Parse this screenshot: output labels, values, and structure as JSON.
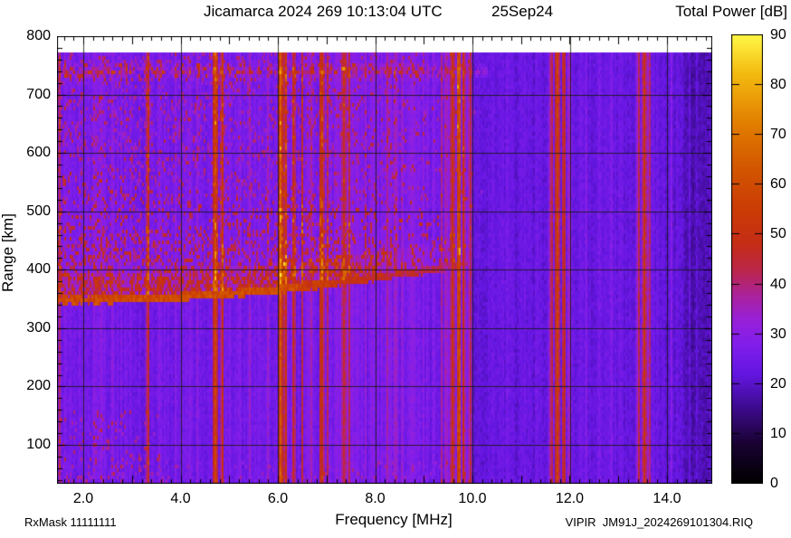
{
  "titles": {
    "main": "Jicamarca 2024 269 10:13:04 UTC",
    "date": "25Sep24",
    "colorbar": "Total Power [dB]",
    "x_axis": "Frequency [MHz]",
    "y_axis": "Range [km]"
  },
  "annotations": {
    "rx_mask": "RxMask 11111111",
    "file_id": "VIPIR  JM91J_2024269101304.RIQ"
  },
  "chart_data": {
    "type": "heatmap",
    "title": "Jicamarca 2024 269 10:13:04 UTC",
    "subtitle": "25Sep24",
    "xlabel": "Frequency [MHz]",
    "ylabel": "Range [km]",
    "colorbar_label": "Total Power [dB]",
    "x_range_mhz": [
      1.46,
      14.93
    ],
    "y_range_km": [
      33,
      800
    ],
    "x_ticks": [
      2.0,
      4.0,
      6.0,
      8.0,
      10.0,
      12.0,
      14.0
    ],
    "x_tick_labels": [
      "2.0",
      "4.0",
      "6.0",
      "8.0",
      "10.0",
      "12.0",
      "14.0"
    ],
    "x_minor_step_mhz": 0.2,
    "y_ticks": [
      100,
      200,
      300,
      400,
      500,
      600,
      700,
      800
    ],
    "y_minor_step_km": 20,
    "grid": true,
    "grid_x_mhz": [
      2,
      4,
      6,
      8,
      10,
      12,
      14
    ],
    "grid_y_km": [
      100,
      200,
      300,
      400,
      500,
      600,
      700
    ],
    "data_top_km": 772,
    "data_bottom_km": 33,
    "colorbar_range_db": [
      0,
      90
    ],
    "colorbar_ticks": [
      0,
      10,
      20,
      30,
      40,
      50,
      60,
      70,
      80,
      90
    ],
    "colormap_stops_db_rgb": [
      [
        0,
        0,
        0,
        0
      ],
      [
        8,
        25,
        2,
        50
      ],
      [
        15,
        60,
        10,
        140
      ],
      [
        22,
        100,
        22,
        225
      ],
      [
        28,
        130,
        30,
        235
      ],
      [
        33,
        152,
        32,
        215
      ],
      [
        38,
        172,
        34,
        150
      ],
      [
        43,
        188,
        38,
        70
      ],
      [
        48,
        197,
        45,
        22
      ],
      [
        55,
        203,
        60,
        5
      ],
      [
        63,
        210,
        85,
        0
      ],
      [
        72,
        225,
        125,
        0
      ],
      [
        82,
        243,
        185,
        15
      ],
      [
        90,
        255,
        248,
        70
      ]
    ],
    "noise_floor_db": 24,
    "features": {
      "f_trace": {
        "comment_visible": "bottomside F-layer echo trace",
        "base_km": 348,
        "quad_coeff": 0.9,
        "f0_mhz": 1.5,
        "sample_points_mhz_km": [
          [
            1.5,
            348
          ],
          [
            2,
            348
          ],
          [
            3,
            350
          ],
          [
            4,
            354
          ],
          [
            5,
            359
          ],
          [
            6,
            366
          ],
          [
            7,
            375
          ],
          [
            8,
            386
          ],
          [
            9,
            399
          ],
          [
            9.9,
            412
          ]
        ],
        "visible_to_mhz": 9.9,
        "core_db": 56
      },
      "spread_f": {
        "extent_mhz": [
          1.46,
          10.3
        ],
        "top_km_at_left": 570,
        "sparse_top_km": 775,
        "typical_db": 40,
        "fade_start_mhz": 7.5
      },
      "branch_trace": {
        "from_mhz_km": [
          6.02,
          395
        ],
        "to_mhz_km": [
          6.7,
          505
        ]
      },
      "high_band": {
        "center_km": 740,
        "half_width_km": 15,
        "extent_mhz": [
          1.46,
          10.3
        ],
        "boost_db": 9
      },
      "quiet_regions_mhz": [
        [
          10.05,
          11.55
        ],
        [
          12.05,
          13.35
        ]
      ],
      "dark_right_edge_from_mhz": 14.35
    },
    "rfi_stripes": [
      {
        "f": 1.52,
        "w": 1.5,
        "db": 14
      },
      {
        "f": 2.2,
        "w": 1.5,
        "db": 4
      },
      {
        "f": 2.38,
        "w": 1,
        "db": 4
      },
      {
        "f": 2.6,
        "w": 1,
        "db": 3
      },
      {
        "f": 2.78,
        "w": 1.5,
        "db": 5
      },
      {
        "f": 2.95,
        "w": 1,
        "db": 5
      },
      {
        "f": 3.33,
        "w": 1.5,
        "db": 20
      },
      {
        "f": 3.55,
        "w": 1,
        "db": 5
      },
      {
        "f": 3.9,
        "w": 1,
        "db": 4
      },
      {
        "f": 4.18,
        "w": 1,
        "db": 5
      },
      {
        "f": 4.33,
        "w": 1,
        "db": 6
      },
      {
        "f": 4.72,
        "w": 2.5,
        "db": 30
      },
      {
        "f": 4.85,
        "w": 2,
        "db": 24
      },
      {
        "f": 5.0,
        "w": 1,
        "db": 6
      },
      {
        "f": 5.22,
        "w": 1.5,
        "db": 7
      },
      {
        "f": 5.43,
        "w": 1,
        "db": 7
      },
      {
        "f": 5.62,
        "w": 1,
        "db": 5
      },
      {
        "f": 5.8,
        "w": 1,
        "db": 6
      },
      {
        "f": 6.06,
        "w": 3.5,
        "db": 32
      },
      {
        "f": 6.16,
        "w": 2,
        "db": 24
      },
      {
        "f": 6.33,
        "w": 1.5,
        "db": 18
      },
      {
        "f": 6.51,
        "w": 1.5,
        "db": 16
      },
      {
        "f": 6.68,
        "w": 1,
        "db": 7
      },
      {
        "f": 6.9,
        "w": 3,
        "db": 22
      },
      {
        "f": 7.03,
        "w": 1.5,
        "db": 12
      },
      {
        "f": 7.2,
        "w": 1,
        "db": 6
      },
      {
        "f": 7.36,
        "w": 2.5,
        "db": 20
      },
      {
        "f": 7.46,
        "w": 1.5,
        "db": 14
      },
      {
        "f": 7.63,
        "w": 1,
        "db": 6
      },
      {
        "f": 7.8,
        "w": 1,
        "db": 5
      },
      {
        "f": 8.05,
        "w": 1,
        "db": 5
      },
      {
        "f": 8.26,
        "w": 1.8,
        "db": 8
      },
      {
        "f": 8.41,
        "w": 1.5,
        "db": 8
      },
      {
        "f": 8.56,
        "w": 1.5,
        "db": 7
      },
      {
        "f": 8.76,
        "w": 1,
        "db": 5
      },
      {
        "f": 9.0,
        "w": 1.5,
        "db": 6
      },
      {
        "f": 9.2,
        "w": 1,
        "db": 6
      },
      {
        "f": 9.36,
        "w": 1.2,
        "db": 9
      },
      {
        "f": 9.46,
        "w": 1.5,
        "db": 13
      },
      {
        "f": 9.6,
        "w": 2.5,
        "db": 22
      },
      {
        "f": 9.72,
        "w": 2.5,
        "db": 34
      },
      {
        "f": 9.83,
        "w": 2,
        "db": 20
      },
      {
        "f": 9.95,
        "w": 1.5,
        "db": 16
      },
      {
        "f": 10.4,
        "w": 1,
        "db": 3
      },
      {
        "f": 10.7,
        "w": 1,
        "db": 3
      },
      {
        "f": 10.95,
        "w": 1,
        "db": 4
      },
      {
        "f": 11.15,
        "w": 1,
        "db": 3
      },
      {
        "f": 11.35,
        "w": 1,
        "db": 4
      },
      {
        "f": 11.62,
        "w": 2,
        "db": 18
      },
      {
        "f": 11.74,
        "w": 2.5,
        "db": 30
      },
      {
        "f": 11.88,
        "w": 1.5,
        "db": 34
      },
      {
        "f": 11.99,
        "w": 1.8,
        "db": 15
      },
      {
        "f": 12.35,
        "w": 1,
        "db": 4
      },
      {
        "f": 12.6,
        "w": 1,
        "db": 4
      },
      {
        "f": 12.85,
        "w": 1.2,
        "db": 5
      },
      {
        "f": 13.1,
        "w": 1,
        "db": 4
      },
      {
        "f": 13.42,
        "w": 2,
        "db": 16
      },
      {
        "f": 13.53,
        "w": 2.5,
        "db": 26
      },
      {
        "f": 13.63,
        "w": 1.8,
        "db": 18
      },
      {
        "f": 14.1,
        "w": 1.5,
        "db": 7
      },
      {
        "f": 14.22,
        "w": 1,
        "db": 5
      },
      {
        "f": 14.45,
        "w": 1,
        "db": 4
      }
    ]
  }
}
